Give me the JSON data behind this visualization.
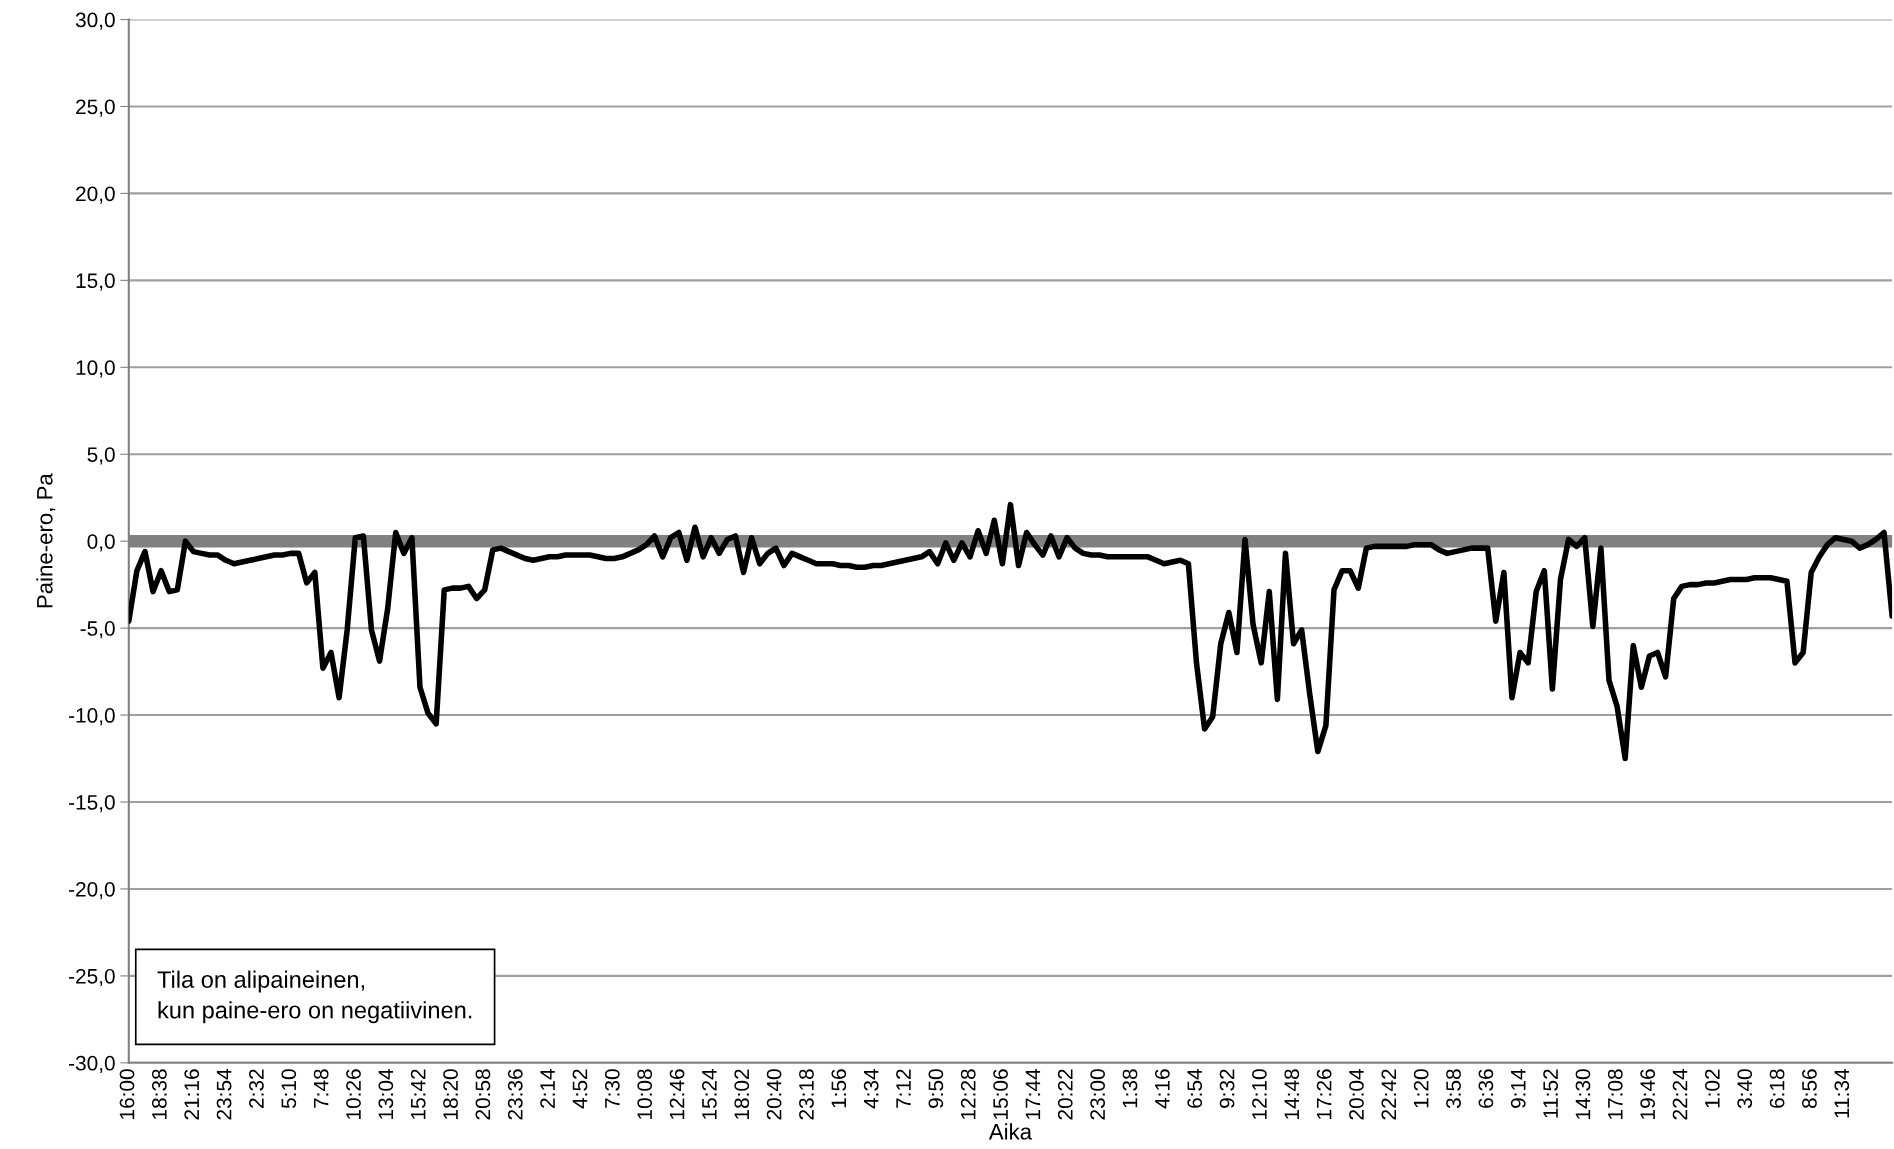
{
  "chart_data": {
    "type": "line",
    "xlabel": "Aika",
    "ylabel": "Paine-ero, Pa",
    "ylim": [
      -30,
      30
    ],
    "yticks": [
      {
        "value": -30,
        "label": "-30,0"
      },
      {
        "value": -25,
        "label": "-25,0"
      },
      {
        "value": -20,
        "label": "-20,0"
      },
      {
        "value": -15,
        "label": "-15,0"
      },
      {
        "value": -10,
        "label": "-10,0"
      },
      {
        "value": -5,
        "label": "-5,0"
      },
      {
        "value": 0,
        "label": "0,0"
      },
      {
        "value": 5,
        "label": "5,0"
      },
      {
        "value": 10,
        "label": "10,0"
      },
      {
        "value": 15,
        "label": "15,0"
      },
      {
        "value": 20,
        "label": "20,0"
      },
      {
        "value": 25,
        "label": "25,0"
      },
      {
        "value": 30,
        "label": "30,0"
      }
    ],
    "categories": [
      "16:00",
      null,
      null,
      null,
      "18:38",
      null,
      null,
      null,
      "21:16",
      null,
      null,
      null,
      "23:54",
      null,
      null,
      null,
      "2:32",
      null,
      null,
      null,
      "5:10",
      null,
      null,
      null,
      "7:48",
      null,
      null,
      null,
      "10:26",
      null,
      null,
      null,
      "13:04",
      null,
      null,
      null,
      "15:42",
      null,
      null,
      null,
      "18:20",
      null,
      null,
      null,
      "20:58",
      null,
      null,
      null,
      "23:36",
      null,
      null,
      null,
      "2:14",
      null,
      null,
      null,
      "4:52",
      null,
      null,
      null,
      "7:30",
      null,
      null,
      null,
      "10:08",
      null,
      null,
      null,
      "12:46",
      null,
      null,
      null,
      "15:24",
      null,
      null,
      null,
      "18:02",
      null,
      null,
      null,
      "20:40",
      null,
      null,
      null,
      "23:18",
      null,
      null,
      null,
      "1:56",
      null,
      null,
      null,
      "4:34",
      null,
      null,
      null,
      "7:12",
      null,
      null,
      null,
      "9:50",
      null,
      null,
      null,
      "12:28",
      null,
      null,
      null,
      "15:06",
      null,
      null,
      null,
      "17:44",
      null,
      null,
      null,
      "20:22",
      null,
      null,
      null,
      "23:00",
      null,
      null,
      null,
      "1:38",
      null,
      null,
      null,
      "4:16",
      null,
      null,
      null,
      "6:54",
      null,
      null,
      null,
      "9:32",
      null,
      null,
      null,
      "12:10",
      null,
      null,
      null,
      "14:48",
      null,
      null,
      null,
      "17:26",
      null,
      null,
      null,
      "20:04",
      null,
      null,
      null,
      "22:42",
      null,
      null,
      null,
      "1:20",
      null,
      null,
      null,
      "3:58",
      null,
      null,
      null,
      "6:36",
      null,
      null,
      null,
      "9:14",
      null,
      null,
      null,
      "11:52",
      null,
      null,
      null,
      "14:30",
      null,
      null,
      null,
      "17:08",
      null,
      null,
      null,
      "19:46",
      null,
      null,
      null,
      "22:24",
      null,
      null,
      null,
      "1:02",
      null,
      null,
      null,
      "3:40",
      null,
      null,
      null,
      "6:18",
      null,
      null,
      null,
      "8:56",
      null,
      null,
      null,
      "11:34",
      null,
      null,
      null,
      null,
      null,
      null
    ],
    "grid": "y",
    "marker": "none",
    "line_style": "solid",
    "ref_lines": [
      {
        "axis": "y",
        "value": 0,
        "color": "#808080"
      }
    ],
    "annotations": [
      "Tila on alipaineinen,\nkun paine-ero on negatiivinen."
    ],
    "series": [
      {
        "color": "#000000",
        "values": [
          -4.6,
          -1.7,
          -0.6,
          -2.9,
          -1.7,
          -2.9,
          -2.8,
          0.0,
          -0.6,
          -0.7,
          -0.8,
          -0.8,
          -1.1,
          -1.3,
          -1.2,
          -1.1,
          -1.0,
          -0.9,
          -0.8,
          -0.8,
          -0.7,
          -0.7,
          -2.4,
          -1.8,
          -7.3,
          -6.4,
          -9.0,
          -5.1,
          0.2,
          0.3,
          -5.1,
          -6.9,
          -3.9,
          0.5,
          -0.7,
          0.2,
          -8.4,
          -9.9,
          -10.5,
          -2.8,
          -2.7,
          -2.7,
          -2.6,
          -3.3,
          -2.8,
          -0.5,
          -0.4,
          -0.6,
          -0.8,
          -1.0,
          -1.1,
          -1.0,
          -0.9,
          -0.9,
          -0.8,
          -0.8,
          -0.8,
          -0.8,
          -0.9,
          -1.0,
          -1.0,
          -0.9,
          -0.7,
          -0.5,
          -0.2,
          0.3,
          -0.9,
          0.2,
          0.5,
          -1.1,
          0.8,
          -0.9,
          0.2,
          -0.7,
          0.1,
          0.3,
          -1.8,
          0.2,
          -1.3,
          -0.7,
          -0.4,
          -1.4,
          -0.7,
          -0.9,
          -1.1,
          -1.3,
          -1.3,
          -1.3,
          -1.4,
          -1.4,
          -1.5,
          -1.5,
          -1.4,
          -1.4,
          -1.3,
          -1.2,
          -1.1,
          -1.0,
          -0.9,
          -0.6,
          -1.3,
          -0.1,
          -1.1,
          -0.1,
          -0.9,
          0.6,
          -0.7,
          1.2,
          -1.3,
          2.1,
          -1.4,
          0.5,
          -0.2,
          -0.8,
          0.3,
          -0.9,
          0.2,
          -0.4,
          -0.7,
          -0.8,
          -0.8,
          -0.9,
          -0.9,
          -0.9,
          -0.9,
          -0.9,
          -0.9,
          -1.1,
          -1.3,
          -1.2,
          -1.1,
          -1.3,
          -7.0,
          -10.8,
          -10.1,
          -5.9,
          -4.1,
          -6.4,
          0.1,
          -4.8,
          -7.0,
          -2.9,
          -9.1,
          -0.7,
          -5.9,
          -5.1,
          -8.8,
          -12.1,
          -10.6,
          -2.8,
          -1.7,
          -1.7,
          -2.7,
          -0.4,
          -0.3,
          -0.3,
          -0.3,
          -0.3,
          -0.3,
          -0.2,
          -0.2,
          -0.2,
          -0.5,
          -0.7,
          -0.6,
          -0.5,
          -0.4,
          -0.4,
          -0.4,
          -4.6,
          -1.8,
          -9.0,
          -6.4,
          -7.0,
          -2.9,
          -1.7,
          -8.5,
          -2.2,
          0.1,
          -0.3,
          0.2,
          -4.9,
          -0.4,
          -8.0,
          -9.5,
          -12.5,
          -6.0,
          -8.4,
          -6.6,
          -6.4,
          -7.8,
          -3.3,
          -2.6,
          -2.5,
          -2.5,
          -2.4,
          -2.4,
          -2.3,
          -2.2,
          -2.2,
          -2.2,
          -2.1,
          -2.1,
          -2.1,
          -2.2,
          -2.3,
          -7.0,
          -6.4,
          -1.8,
          -0.9,
          -0.2,
          0.2,
          0.1,
          0.0,
          -0.4,
          -0.2,
          0.1,
          0.5,
          -4.3
        ]
      }
    ]
  }
}
